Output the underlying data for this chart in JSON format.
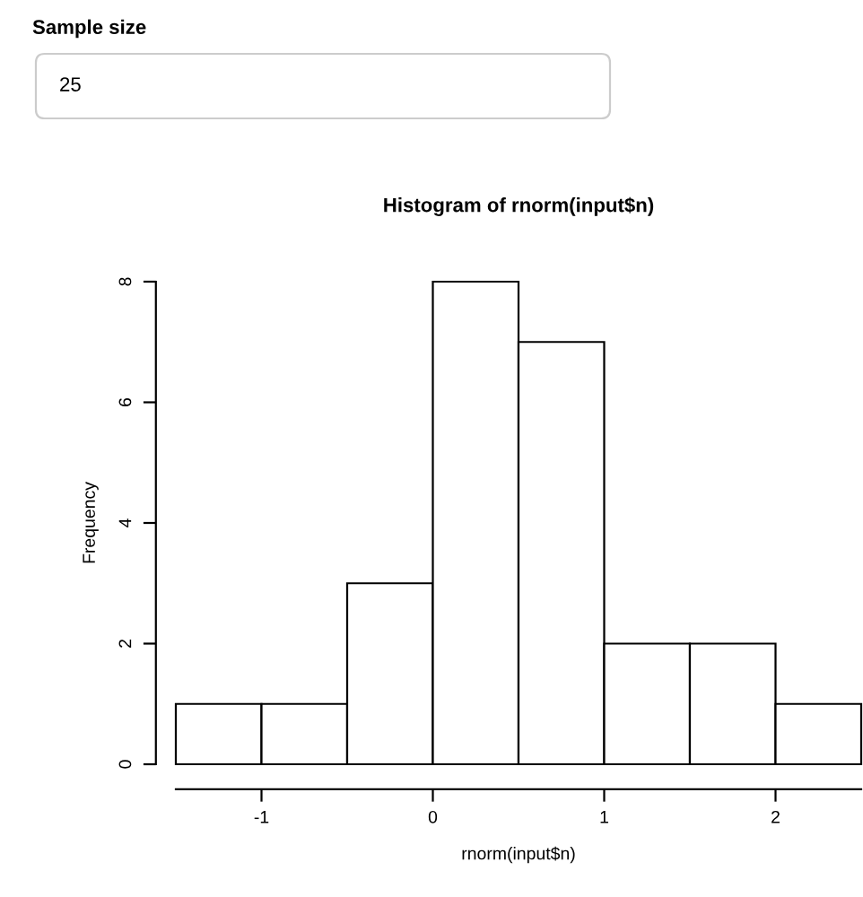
{
  "chart_data": {
    "type": "histogram",
    "title": "Histogram of rnorm(input$n)",
    "xlabel": "rnorm(input$n)",
    "ylabel": "Frequency",
    "bins": [
      -1.5,
      -1.0,
      -0.5,
      0.0,
      0.5,
      1.0,
      1.5,
      2.0,
      2.5
    ],
    "values": [
      1,
      1,
      3,
      8,
      7,
      2,
      2,
      1
    ],
    "color": "#ffffff",
    "xlim": [
      -1.5,
      2.5
    ],
    "xticks": [
      -1,
      0,
      1,
      2
    ],
    "ylim": [
      0,
      8
    ],
    "yticks": [
      0,
      2,
      4,
      6,
      8
    ],
    "annotations": [
      "Sample size",
      "25"
    ]
  }
}
